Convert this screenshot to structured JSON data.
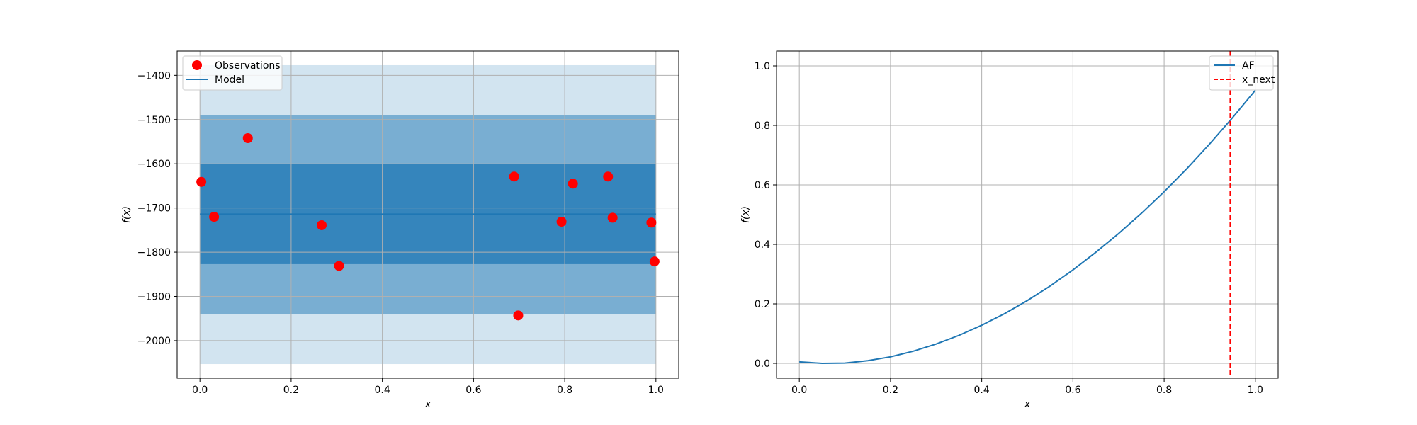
{
  "chart_data": [
    {
      "type": "scatter",
      "xlabel": "x",
      "ylabel": "f(x)",
      "xlim": [
        -0.05,
        1.05
      ],
      "ylim": [
        -2085,
        -1345
      ],
      "xticks": [
        0.0,
        0.2,
        0.4,
        0.6,
        0.8,
        1.0
      ],
      "xtick_labels": [
        "0.0",
        "0.2",
        "0.4",
        "0.6",
        "0.8",
        "1.0"
      ],
      "yticks": [
        -2000,
        -1900,
        -1800,
        -1700,
        -1600,
        -1500,
        -1400
      ],
      "ytick_labels": [
        "−2000",
        "−1900",
        "−1800",
        "−1700",
        "−1600",
        "−1500",
        "−1400"
      ],
      "grid": true,
      "legend_position": "top-left",
      "observations": {
        "name": "Observations",
        "color": "#ff0000",
        "x": [
          0.003,
          0.031,
          0.105,
          0.267,
          0.305,
          0.689,
          0.698,
          0.793,
          0.818,
          0.895,
          0.905,
          0.99,
          0.997
        ],
        "y": [
          -1641,
          -1720,
          -1542,
          -1739,
          -1831,
          -1629,
          -1943,
          -1731,
          -1645,
          -1629,
          -1722,
          -1733,
          -1821
        ]
      },
      "model": {
        "name": "Model",
        "color": "#1f77b4",
        "x": [
          0.0,
          1.0
        ],
        "mean": -1714,
        "bands": [
          {
            "lower": -1827,
            "upper": -1601,
            "opacity": 0.75
          },
          {
            "lower": -1940,
            "upper": -1490,
            "opacity": 0.5
          },
          {
            "lower": -2053,
            "upper": -1377,
            "opacity": 0.2
          }
        ]
      }
    },
    {
      "type": "line",
      "xlabel": "x",
      "ylabel": "f(x)",
      "xlim": [
        -0.05,
        1.05
      ],
      "ylim": [
        -0.05,
        1.05
      ],
      "xticks": [
        0.0,
        0.2,
        0.4,
        0.6,
        0.8,
        1.0
      ],
      "xtick_labels": [
        "0.0",
        "0.2",
        "0.4",
        "0.6",
        "0.8",
        "1.0"
      ],
      "yticks": [
        0.0,
        0.2,
        0.4,
        0.6,
        0.8,
        1.0
      ],
      "ytick_labels": [
        "0.0",
        "0.2",
        "0.4",
        "0.6",
        "0.8",
        "1.0"
      ],
      "grid": true,
      "legend_position": "top-right",
      "series": [
        {
          "name": "AF",
          "color": "#1f77b4",
          "x": [
            0.0,
            0.05,
            0.1,
            0.15,
            0.2,
            0.25,
            0.3,
            0.35,
            0.4,
            0.45,
            0.5,
            0.55,
            0.6,
            0.65,
            0.7,
            0.75,
            0.8,
            0.85,
            0.9,
            0.95,
            1.0
          ],
          "y": [
            0.005,
            0.0,
            0.001,
            0.009,
            0.022,
            0.041,
            0.065,
            0.094,
            0.128,
            0.167,
            0.211,
            0.26,
            0.314,
            0.373,
            0.436,
            0.504,
            0.577,
            0.655,
            0.738,
            0.826,
            0.918
          ]
        }
      ],
      "vline": {
        "name": "x_next",
        "x": 0.945,
        "color": "#ff0000",
        "style": "dashed"
      }
    }
  ]
}
